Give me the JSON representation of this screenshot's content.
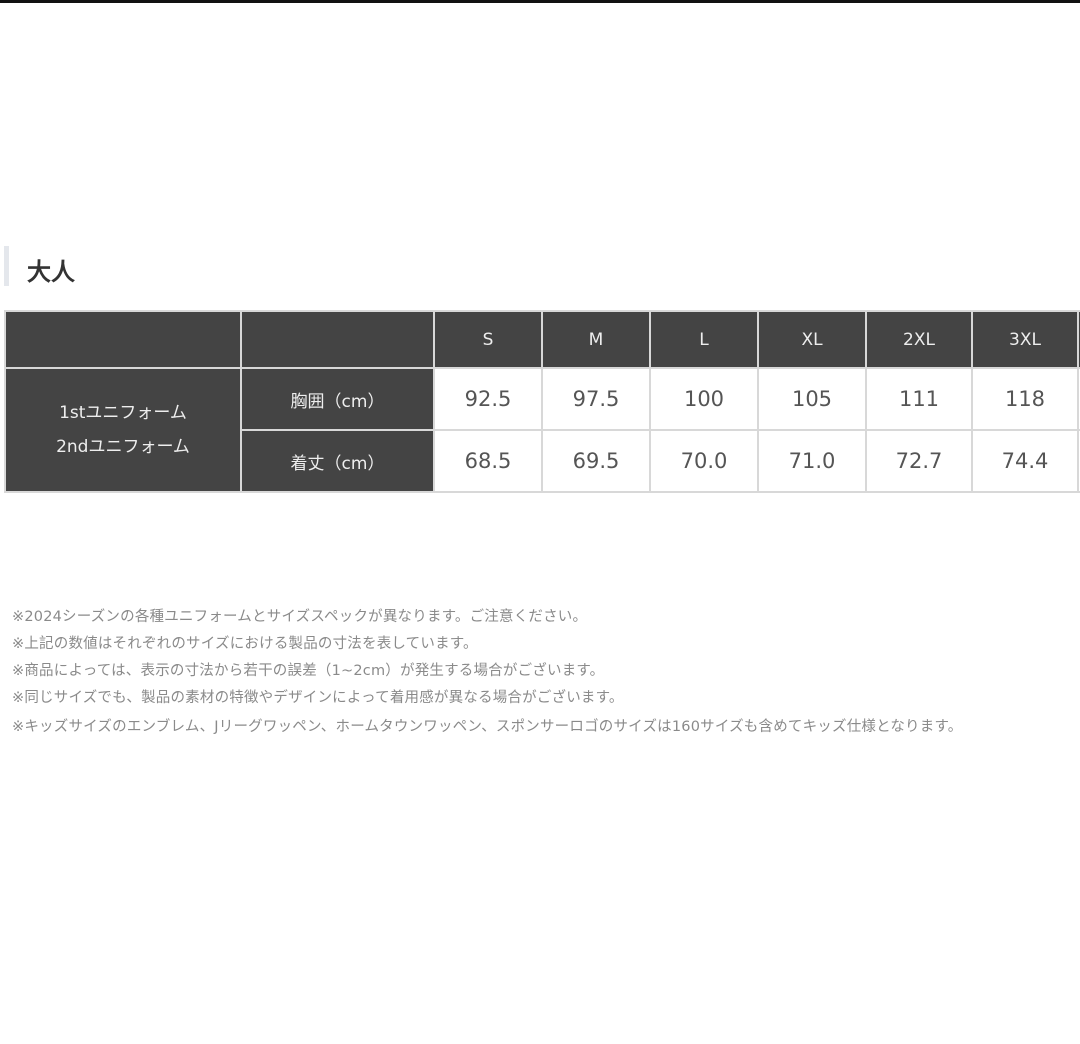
{
  "section_title": "大人",
  "table": {
    "sizes": [
      "S",
      "M",
      "L",
      "XL",
      "2XL",
      "3XL"
    ],
    "group_label_lines": [
      "1stユニフォーム",
      "2ndユニフォーム"
    ],
    "rows": [
      {
        "label": "胸囲（cm）",
        "values": [
          "92.5",
          "97.5",
          "100",
          "105",
          "111",
          "118"
        ]
      },
      {
        "label": "着丈（cm）",
        "values": [
          "68.5",
          "69.5",
          "70.0",
          "71.0",
          "72.7",
          "74.4"
        ]
      }
    ]
  },
  "notes": [
    "※2024シーズンの各種ユニフォームとサイズスペックが異なります。ご注意ください。",
    "※上記の数値はそれぞれのサイズにおける製品の寸法を表しています。",
    "※商品によっては、表示の寸法から若干の誤差（1~2cm）が発生する場合がございます。",
    "※同じサイズでも、製品の素材の特徴やデザインによって着用感が異なる場合がございます。",
    "※キッズサイズのエンブレム、Jリーグワッペン、ホームタウンワッペン、スポンサーロゴのサイズは160サイズも含めてキッズ仕様となります。"
  ],
  "colors": {
    "header_bg": "#444444",
    "text": "#555555",
    "notes": "#8a8a8a"
  }
}
